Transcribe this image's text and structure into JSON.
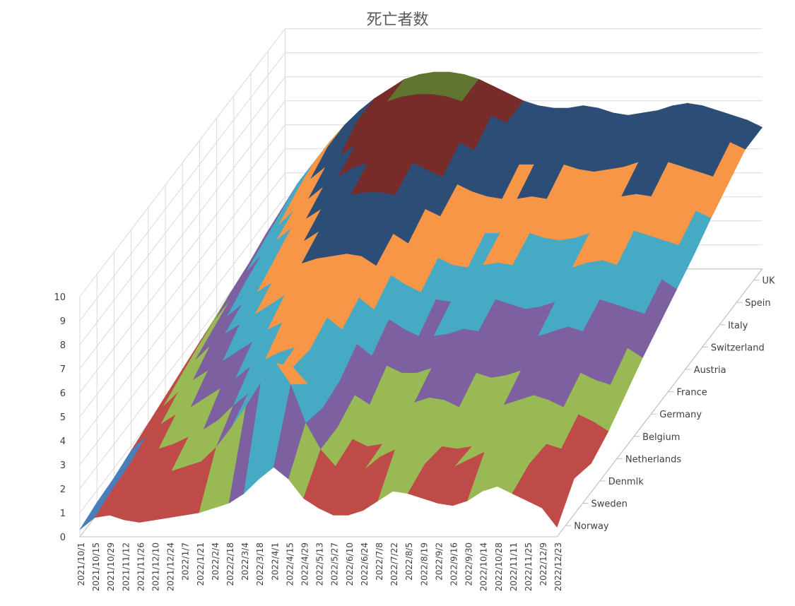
{
  "chart_data": {
    "type": "surface",
    "title": "死亡者数",
    "zlim": [
      0,
      10
    ],
    "z_ticks": [
      "0",
      "1",
      "2",
      "3",
      "4",
      "5",
      "6",
      "7",
      "8",
      "9",
      "10"
    ],
    "x_tick_labels": [
      "2021/10/1",
      "2021/10/15",
      "2021/10/29",
      "2021/11/12",
      "2021/11/26",
      "2021/12/10",
      "2021/12/24",
      "2022/1/7",
      "2022/1/21",
      "2022/2/4",
      "2022/2/18",
      "2022/3/4",
      "2022/3/18",
      "2022/4/1",
      "2022/4/15",
      "2022/4/29",
      "2022/5/13",
      "2022/5/27",
      "2022/6/10",
      "2022/6/24",
      "2022/7/8",
      "2022/7/22",
      "2022/8/5",
      "2022/8/19",
      "2022/9/2",
      "2022/9/16",
      "2022/9/30",
      "2022/10/14",
      "2022/10/28",
      "2022/11/11",
      "2022/11/25",
      "2022/12/9",
      "2022/12/23"
    ],
    "series": [
      {
        "name": "Norway",
        "values": [
          0.3,
          0.8,
          0.9,
          0.7,
          0.6,
          0.7,
          0.8,
          0.9,
          1.0,
          1.2,
          1.4,
          1.8,
          2.4,
          2.9,
          2.4,
          1.6,
          1.2,
          0.9,
          0.9,
          1.1,
          1.5,
          1.9,
          1.8,
          1.6,
          1.4,
          1.3,
          1.5,
          1.9,
          2.1,
          1.8,
          1.5,
          1.2,
          0.4
        ]
      },
      {
        "name": "Sweden",
        "values": [
          0.5,
          1.0,
          1.3,
          1.4,
          1.5,
          1.8,
          2.0,
          2.2,
          2.8,
          3.6,
          4.5,
          5.5,
          6.3,
          5.4,
          3.8,
          2.7,
          2.0,
          1.7,
          1.9,
          2.4,
          2.7,
          2.5,
          2.1,
          1.9,
          2.0,
          2.3,
          2.6,
          2.8,
          2.5,
          2.1,
          1.9,
          2.2,
          1.5
        ]
      },
      {
        "name": "Denmlk",
        "values": [
          0.6,
          1.1,
          1.5,
          1.8,
          2.0,
          2.3,
          2.6,
          3.0,
          3.6,
          4.1,
          4.6,
          5.0,
          5.2,
          4.5,
          3.5,
          2.7,
          2.2,
          1.9,
          2.0,
          2.2,
          2.3,
          2.1,
          1.9,
          1.8,
          1.9,
          2.0,
          2.2,
          2.4,
          2.3,
          2.0,
          1.8,
          1.6,
          1.2
        ]
      },
      {
        "name": "Netherlands",
        "values": [
          0.8,
          1.4,
          1.9,
          2.3,
          2.6,
          3.0,
          3.4,
          3.8,
          4.3,
          4.6,
          4.9,
          5.1,
          5.0,
          4.4,
          3.7,
          3.1,
          2.7,
          2.4,
          2.5,
          2.8,
          3.0,
          2.9,
          2.6,
          2.4,
          2.5,
          2.7,
          2.9,
          3.1,
          2.9,
          2.6,
          2.3,
          2.0,
          1.6
        ]
      },
      {
        "name": "Belgium",
        "values": [
          1.0,
          1.7,
          2.3,
          2.8,
          3.2,
          3.6,
          4.0,
          4.4,
          4.9,
          5.2,
          5.4,
          5.5,
          5.4,
          4.9,
          4.3,
          3.8,
          3.4,
          3.1,
          3.1,
          3.3,
          3.5,
          3.4,
          3.1,
          2.9,
          3.0,
          3.2,
          3.4,
          3.6,
          3.4,
          3.1,
          2.8,
          2.6,
          2.2
        ]
      },
      {
        "name": "Germany",
        "values": [
          1.2,
          2.0,
          2.7,
          3.3,
          3.8,
          4.2,
          4.6,
          5.0,
          5.4,
          5.6,
          5.7,
          5.8,
          5.7,
          5.3,
          4.8,
          4.4,
          4.0,
          3.7,
          3.7,
          3.8,
          4.0,
          3.9,
          3.6,
          3.4,
          3.5,
          3.7,
          3.9,
          4.1,
          3.9,
          3.6,
          3.4,
          3.2,
          2.8
        ]
      },
      {
        "name": "France",
        "values": [
          1.4,
          2.3,
          3.0,
          3.6,
          4.1,
          4.6,
          5.0,
          5.4,
          5.8,
          6.0,
          6.1,
          6.2,
          6.1,
          5.7,
          5.3,
          4.9,
          4.6,
          4.3,
          4.2,
          4.3,
          4.4,
          4.3,
          4.1,
          3.9,
          4.0,
          4.2,
          4.4,
          4.5,
          4.3,
          4.1,
          3.9,
          3.7,
          3.3
        ]
      },
      {
        "name": "Austria",
        "values": [
          1.6,
          2.5,
          3.3,
          4.0,
          4.5,
          5.0,
          5.4,
          5.8,
          6.2,
          6.4,
          6.5,
          6.5,
          6.4,
          6.1,
          5.7,
          5.4,
          5.1,
          4.8,
          4.7,
          4.8,
          4.9,
          4.8,
          4.6,
          4.4,
          4.5,
          4.7,
          4.9,
          5.0,
          4.8,
          4.6,
          4.4,
          4.2,
          3.8
        ]
      },
      {
        "name": "Switzerland",
        "values": [
          1.8,
          2.8,
          3.6,
          4.3,
          4.9,
          5.4,
          5.8,
          6.2,
          6.6,
          6.8,
          6.9,
          6.9,
          6.8,
          6.5,
          6.2,
          5.9,
          5.6,
          5.3,
          5.2,
          5.2,
          5.3,
          5.2,
          5.0,
          4.9,
          5.0,
          5.2,
          5.3,
          5.4,
          5.3,
          5.1,
          4.9,
          4.7,
          4.3
        ]
      },
      {
        "name": "Italy",
        "values": [
          2.0,
          3.0,
          3.9,
          4.6,
          5.2,
          5.7,
          6.2,
          6.6,
          7.0,
          7.2,
          7.3,
          7.3,
          7.2,
          6.9,
          6.6,
          6.3,
          6.0,
          5.8,
          5.7,
          5.7,
          5.8,
          5.7,
          5.5,
          5.4,
          5.5,
          5.6,
          5.8,
          5.9,
          5.8,
          5.6,
          5.4,
          5.2,
          4.9
        ]
      },
      {
        "name": "Spein",
        "values": [
          2.2,
          3.3,
          4.2,
          5.0,
          5.6,
          6.1,
          6.6,
          7.0,
          7.4,
          7.6,
          7.7,
          7.7,
          7.6,
          7.4,
          7.1,
          6.8,
          6.5,
          6.3,
          6.2,
          6.2,
          6.3,
          6.2,
          6.0,
          5.9,
          6.0,
          6.1,
          6.3,
          6.4,
          6.3,
          6.1,
          5.9,
          5.7,
          5.4
        ]
      },
      {
        "name": "UK",
        "values": [
          2.4,
          3.5,
          4.5,
          5.3,
          6.0,
          6.6,
          7.1,
          7.5,
          7.9,
          8.1,
          8.2,
          8.2,
          8.1,
          7.9,
          7.6,
          7.3,
          7.0,
          6.8,
          6.7,
          6.7,
          6.8,
          6.7,
          6.5,
          6.4,
          6.5,
          6.6,
          6.8,
          6.9,
          6.8,
          6.6,
          6.4,
          6.2,
          5.9
        ]
      }
    ],
    "band_colors": [
      "#4a7ebb",
      "#be4b48",
      "#98b954",
      "#7d60a0",
      "#46aac5",
      "#f79646",
      "#2c4d75",
      "#772c2a",
      "#5f7530",
      "#4d3b62",
      "#276a7c",
      "#b65708"
    ],
    "axis_color": "#bfbfbf",
    "grid": true
  }
}
